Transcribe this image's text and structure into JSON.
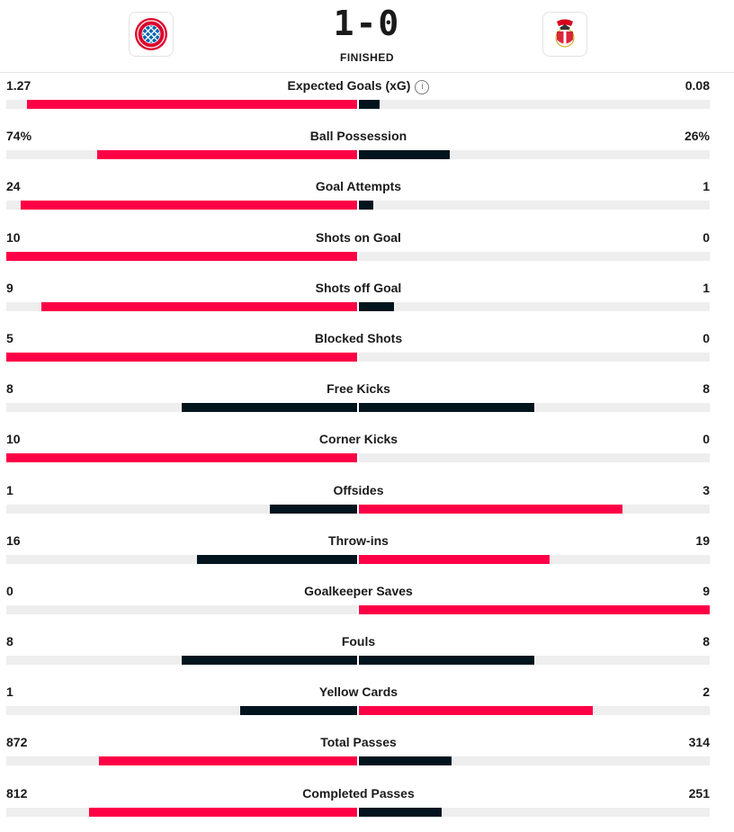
{
  "match": {
    "score": "1-0",
    "status": "FINISHED",
    "home_crest": "fc-bayern-muenchen-crest-icon",
    "away_crest": "sl-benfica-crest-icon"
  },
  "colors": {
    "leader": "#ff0046",
    "trailer": "#00141e",
    "track": "#eeeeee"
  },
  "stats": [
    {
      "label": "Expected Goals (xG)",
      "home": "1.27",
      "away": "0.08",
      "home_frac": 0.94,
      "away_frac": 0.06,
      "info": true
    },
    {
      "label": "Ball Possession",
      "home": "74%",
      "away": "26%",
      "home_frac": 0.74,
      "away_frac": 0.26
    },
    {
      "label": "Goal Attempts",
      "home": "24",
      "away": "1",
      "home_frac": 0.96,
      "away_frac": 0.04
    },
    {
      "label": "Shots on Goal",
      "home": "10",
      "away": "0",
      "home_frac": 1.0,
      "away_frac": 0.0
    },
    {
      "label": "Shots off Goal",
      "home": "9",
      "away": "1",
      "home_frac": 0.9,
      "away_frac": 0.1
    },
    {
      "label": "Blocked Shots",
      "home": "5",
      "away": "0",
      "home_frac": 1.0,
      "away_frac": 0.0
    },
    {
      "label": "Free Kicks",
      "home": "8",
      "away": "8",
      "home_frac": 0.5,
      "away_frac": 0.5
    },
    {
      "label": "Corner Kicks",
      "home": "10",
      "away": "0",
      "home_frac": 1.0,
      "away_frac": 0.0
    },
    {
      "label": "Offsides",
      "home": "1",
      "away": "3",
      "home_frac": 0.25,
      "away_frac": 0.75
    },
    {
      "label": "Throw-ins",
      "home": "16",
      "away": "19",
      "home_frac": 0.457,
      "away_frac": 0.543
    },
    {
      "label": "Goalkeeper Saves",
      "home": "0",
      "away": "9",
      "home_frac": 0.0,
      "away_frac": 1.0
    },
    {
      "label": "Fouls",
      "home": "8",
      "away": "8",
      "home_frac": 0.5,
      "away_frac": 0.5
    },
    {
      "label": "Yellow Cards",
      "home": "1",
      "away": "2",
      "home_frac": 0.333,
      "away_frac": 0.667
    },
    {
      "label": "Total Passes",
      "home": "872",
      "away": "314",
      "home_frac": 0.735,
      "away_frac": 0.265
    },
    {
      "label": "Completed Passes",
      "home": "812",
      "away": "251",
      "home_frac": 0.764,
      "away_frac": 0.236
    }
  ]
}
